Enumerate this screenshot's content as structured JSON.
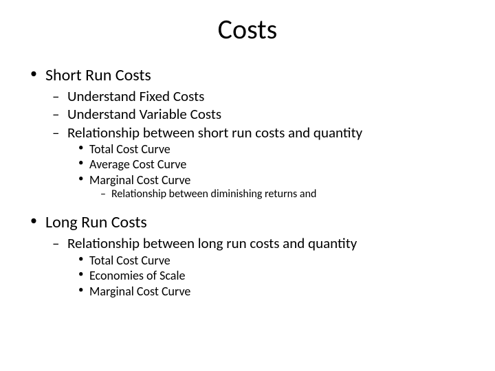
{
  "slide": {
    "title": "Costs",
    "background_color": "#ffffff",
    "text_color": "#000000",
    "font_family": "Calibri",
    "title_fontsize": 40,
    "sections": [
      {
        "label": "Short Run Costs",
        "fontsize": 24,
        "bullet": "•",
        "children": [
          {
            "label": "Understand Fixed Costs",
            "fontsize": 21,
            "bullet": "–"
          },
          {
            "label": "Understand Variable Costs",
            "fontsize": 21,
            "bullet": "–"
          },
          {
            "label": "Relationship between short run costs and quantity",
            "fontsize": 21,
            "bullet": "–",
            "children": [
              {
                "label": "Total Cost Curve",
                "fontsize": 18,
                "bullet": "•"
              },
              {
                "label": "Average Cost Curve",
                "fontsize": 18,
                "bullet": "•"
              },
              {
                "label": "Marginal Cost Curve",
                "fontsize": 18,
                "bullet": "•",
                "children": [
                  {
                    "label": "Relationship between diminishing returns and",
                    "fontsize": 16,
                    "bullet": "–"
                  }
                ]
              }
            ]
          }
        ]
      },
      {
        "label": "Long Run Costs",
        "fontsize": 24,
        "bullet": "•",
        "children": [
          {
            "label": "Relationship between long run costs and quantity",
            "fontsize": 21,
            "bullet": "–",
            "children": [
              {
                "label": "Total Cost Curve",
                "fontsize": 18,
                "bullet": "•"
              },
              {
                "label": "Economies of Scale",
                "fontsize": 18,
                "bullet": "•"
              },
              {
                "label": "Marginal Cost Curve",
                "fontsize": 18,
                "bullet": "•"
              }
            ]
          }
        ]
      }
    ]
  }
}
